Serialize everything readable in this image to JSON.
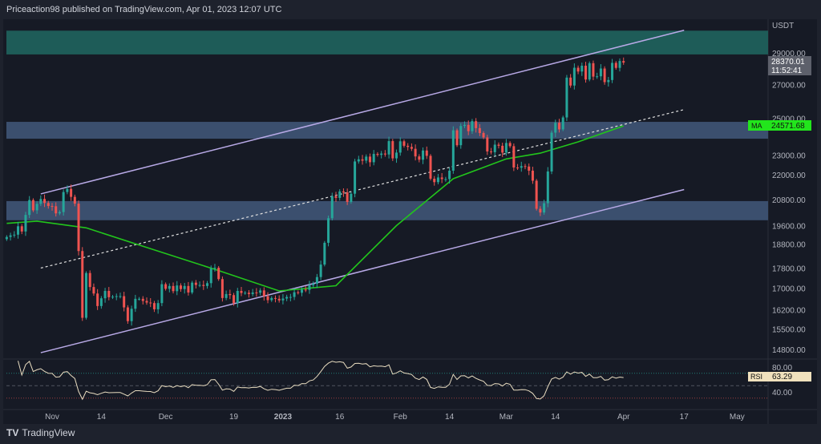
{
  "header": {
    "published": "Priceaction98 published on TradingView.com, Apr 01, 2023 12:07 UTC"
  },
  "footer": {
    "brand": "TradingView",
    "logo": "TV"
  },
  "colors": {
    "up": "#26a69a",
    "down": "#ef5350",
    "ma": "#22c51c",
    "channel": "#b8a9e6",
    "teal_zone": "#1e5c58",
    "blue_zone": "#3b4f6e",
    "rsi": "#e8dcc0"
  },
  "chart_data": {
    "type": "candlestick",
    "symbol_currency": "USDT",
    "price_scale": "log",
    "ylim": [
      14500,
      31000
    ],
    "y_ticks": [
      "29000.00",
      "27000.00",
      "25000.00",
      "23000.00",
      "22000.00",
      "20800.00",
      "19600.00",
      "18800.00",
      "17800.00",
      "17000.00",
      "16200.00",
      "15500.00",
      "14800.00"
    ],
    "x_ticks": [
      {
        "label": "Nov",
        "date": "2022-11-01"
      },
      {
        "label": "14",
        "date": "2022-11-14"
      },
      {
        "label": "Dec",
        "date": "2022-12-01"
      },
      {
        "label": "19",
        "date": "2022-12-19"
      },
      {
        "label": "2023",
        "date": "2023-01-01"
      },
      {
        "label": "16",
        "date": "2023-01-16"
      },
      {
        "label": "Feb",
        "date": "2023-02-01"
      },
      {
        "label": "14",
        "date": "2023-02-14"
      },
      {
        "label": "Mar",
        "date": "2023-03-01"
      },
      {
        "label": "14",
        "date": "2023-03-14"
      },
      {
        "label": "Apr",
        "date": "2023-04-01"
      },
      {
        "label": "17",
        "date": "2023-04-17"
      },
      {
        "label": "May",
        "date": "2023-05-01"
      }
    ],
    "first_date": "2022-10-20",
    "daily_closes": [
      19100,
      19170,
      19200,
      19570,
      19340,
      20080,
      20770,
      20290,
      20590,
      20820,
      20630,
      20490,
      20480,
      20150,
      20210,
      21150,
      21300,
      20920,
      20600,
      18500,
      15900,
      17600,
      17050,
      16800,
      16330,
      16620,
      16900,
      16660,
      16680,
      16700,
      16700,
      16280,
      15780,
      16230,
      16600,
      16600,
      16520,
      16460,
      16440,
      16210,
      16440,
      17160,
      16980,
      17090,
      16890,
      17110,
      16970,
      17090,
      16840,
      17220,
      17130,
      17130,
      17090,
      17200,
      17780,
      17810,
      17360,
      16630,
      16780,
      16740,
      16440,
      16900,
      16820,
      16830,
      16780,
      16840,
      16830,
      16920,
      16700,
      16550,
      16630,
      16600,
      16540,
      16610,
      16670,
      16670,
      16850,
      16830,
      16950,
      16940,
      17120,
      17180,
      17440,
      17940,
      18850,
      19930,
      20950,
      20870,
      21180,
      21130,
      20680,
      21070,
      22670,
      22780,
      22710,
      22920,
      22630,
      23060,
      23010,
      23080,
      23030,
      23740,
      22830,
      23130,
      23730,
      23490,
      23430,
      23330,
      22930,
      22760,
      23240,
      22960,
      21800,
      21630,
      21860,
      21780,
      21780,
      22200,
      24330,
      23520,
      24570,
      24630,
      24280,
      24840,
      24450,
      24180,
      23940,
      23190,
      23150,
      23550,
      23490,
      23130,
      23640,
      23470,
      22360,
      22350,
      22430,
      22410,
      22200,
      21700,
      20360,
      20190,
      20620,
      22160,
      24200,
      24750,
      24380,
      25050,
      27420,
      26930,
      28040,
      27800,
      28170,
      27300,
      28330,
      27480,
      27500,
      27990,
      27140,
      27270,
      28350,
      28030,
      28470,
      28370
    ],
    "last_price": {
      "value": "28370.01",
      "countdown": "11:52:41"
    },
    "moving_average": {
      "label": "MA",
      "value": "24571.68",
      "points": [
        [
          "2022-10-20",
          19700
        ],
        [
          "2022-10-28",
          19800
        ],
        [
          "2022-11-10",
          19500
        ],
        [
          "2022-11-25",
          18700
        ],
        [
          "2022-12-15",
          17700
        ],
        [
          "2022-12-31",
          16900
        ],
        [
          "2023-01-15",
          17100
        ],
        [
          "2023-01-31",
          19600
        ],
        [
          "2023-02-15",
          21800
        ],
        [
          "2023-03-01",
          22800
        ],
        [
          "2023-03-10",
          23100
        ],
        [
          "2023-03-20",
          23700
        ],
        [
          "2023-04-01",
          24571.68
        ]
      ]
    },
    "zones": [
      {
        "name": "resistance-zone-top",
        "from": 28900,
        "to": 30500,
        "color": "#1e5c58"
      },
      {
        "name": "zone-mid",
        "from": 23870,
        "to": 24800,
        "color": "#3b4f6e"
      },
      {
        "name": "zone-low",
        "from": 19840,
        "to": 20720,
        "color": "#3b4f6e"
      }
    ],
    "channel": {
      "upper": [
        [
          "2022-10-29",
          21060
        ],
        [
          "2023-04-17",
          30530
        ]
      ],
      "middle": [
        [
          "2022-10-29",
          17800
        ],
        [
          "2023-04-17",
          25500
        ]
      ],
      "lower": [
        [
          "2022-10-29",
          14690
        ],
        [
          "2023-04-17",
          21270
        ]
      ]
    },
    "rsi": {
      "label": "RSI",
      "value": "63.29",
      "period": 14,
      "ticks": [
        "80.00",
        "40.00"
      ],
      "upper_band": 70,
      "lower_band": 30,
      "mid": 50
    }
  }
}
